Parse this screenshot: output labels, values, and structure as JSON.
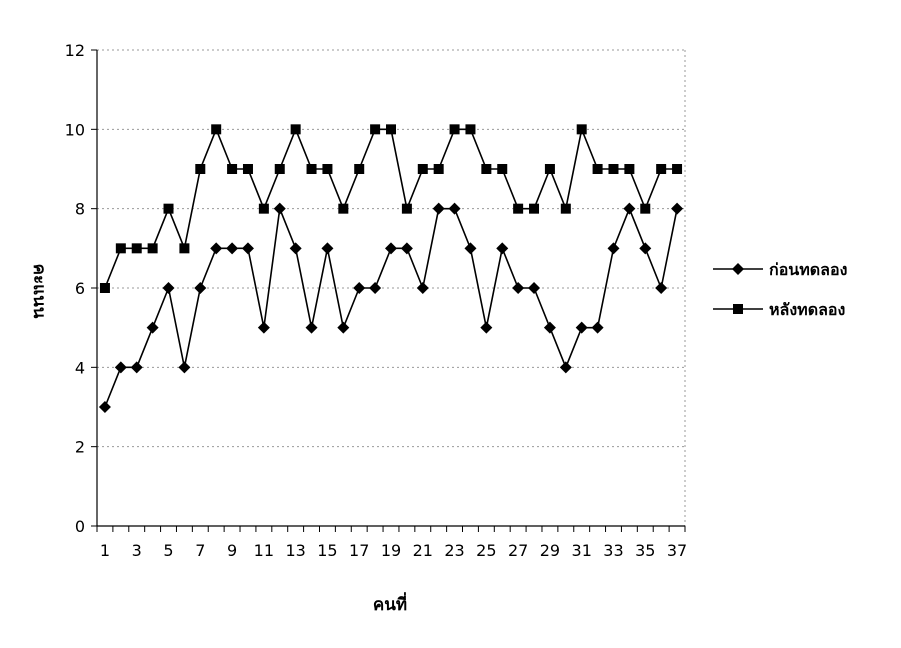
{
  "chart_data": {
    "type": "line",
    "title": "",
    "xlabel": "คนที่",
    "ylabel": "คะแนน",
    "ylim": [
      0,
      12
    ],
    "yticks": [
      0,
      2,
      4,
      6,
      8,
      10,
      12
    ],
    "x": [
      1,
      2,
      3,
      4,
      5,
      6,
      7,
      8,
      9,
      10,
      11,
      12,
      13,
      14,
      15,
      16,
      17,
      18,
      19,
      20,
      21,
      22,
      23,
      24,
      25,
      26,
      27,
      28,
      29,
      30,
      31,
      32,
      33,
      34,
      35,
      36,
      37
    ],
    "xtick_labels": [
      "1",
      "3",
      "5",
      "7",
      "9",
      "11",
      "13",
      "15",
      "17",
      "19",
      "21",
      "23",
      "25",
      "27",
      "29",
      "31",
      "33",
      "35",
      "37"
    ],
    "grid": "horizontal dotted",
    "legend_position": "right",
    "series": [
      {
        "name": "ก่อนทดลอง",
        "marker": "diamond",
        "color": "#000000",
        "values": [
          3,
          4,
          4,
          5,
          6,
          4,
          6,
          7,
          7,
          7,
          5,
          8,
          7,
          5,
          7,
          5,
          6,
          6,
          7,
          7,
          6,
          8,
          8,
          7,
          5,
          7,
          6,
          6,
          5,
          4,
          5,
          5,
          7,
          8,
          7,
          6,
          8
        ]
      },
      {
        "name": "หลังทดลอง",
        "marker": "square",
        "color": "#000000",
        "values": [
          6,
          7,
          7,
          7,
          8,
          7,
          9,
          10,
          9,
          9,
          8,
          9,
          10,
          9,
          9,
          8,
          9,
          10,
          10,
          8,
          9,
          9,
          10,
          10,
          9,
          9,
          8,
          8,
          9,
          8,
          10,
          9,
          9,
          9,
          8,
          9,
          9
        ]
      }
    ]
  }
}
